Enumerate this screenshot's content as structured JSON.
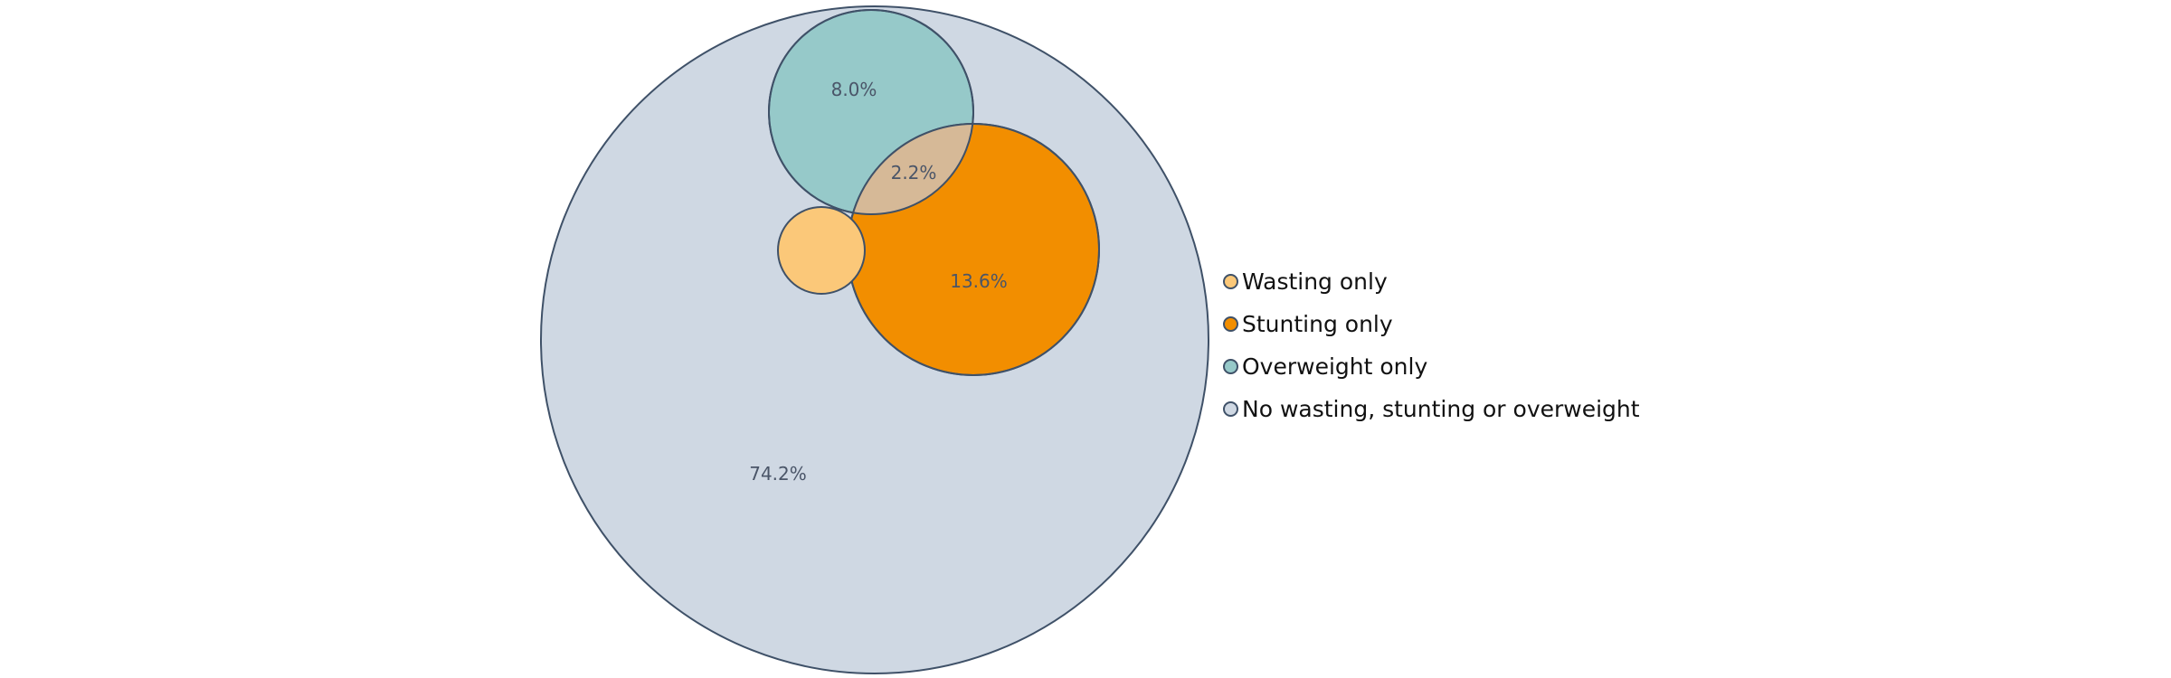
{
  "regions": [
    {
      "label": "74.2%",
      "fill": "#cfd8e3"
    },
    {
      "label": "8.0%",
      "fill": "#96c9c9"
    },
    {
      "label": "13.6%",
      "fill": "#f28e00"
    },
    {
      "label": "2.2%",
      "fill": "#d6b997"
    },
    {
      "label": "",
      "fill": "#fbc879"
    }
  ],
  "legend": [
    {
      "label": "Wasting only",
      "color": "#fbc879"
    },
    {
      "label": "Stunting only",
      "color": "#f28e00"
    },
    {
      "label": "Overweight only",
      "color": "#96c9c9"
    },
    {
      "label": "No wasting, stunting or overweight",
      "color": "#cfd8e3"
    }
  ],
  "stroke_color": "#3f5168"
}
